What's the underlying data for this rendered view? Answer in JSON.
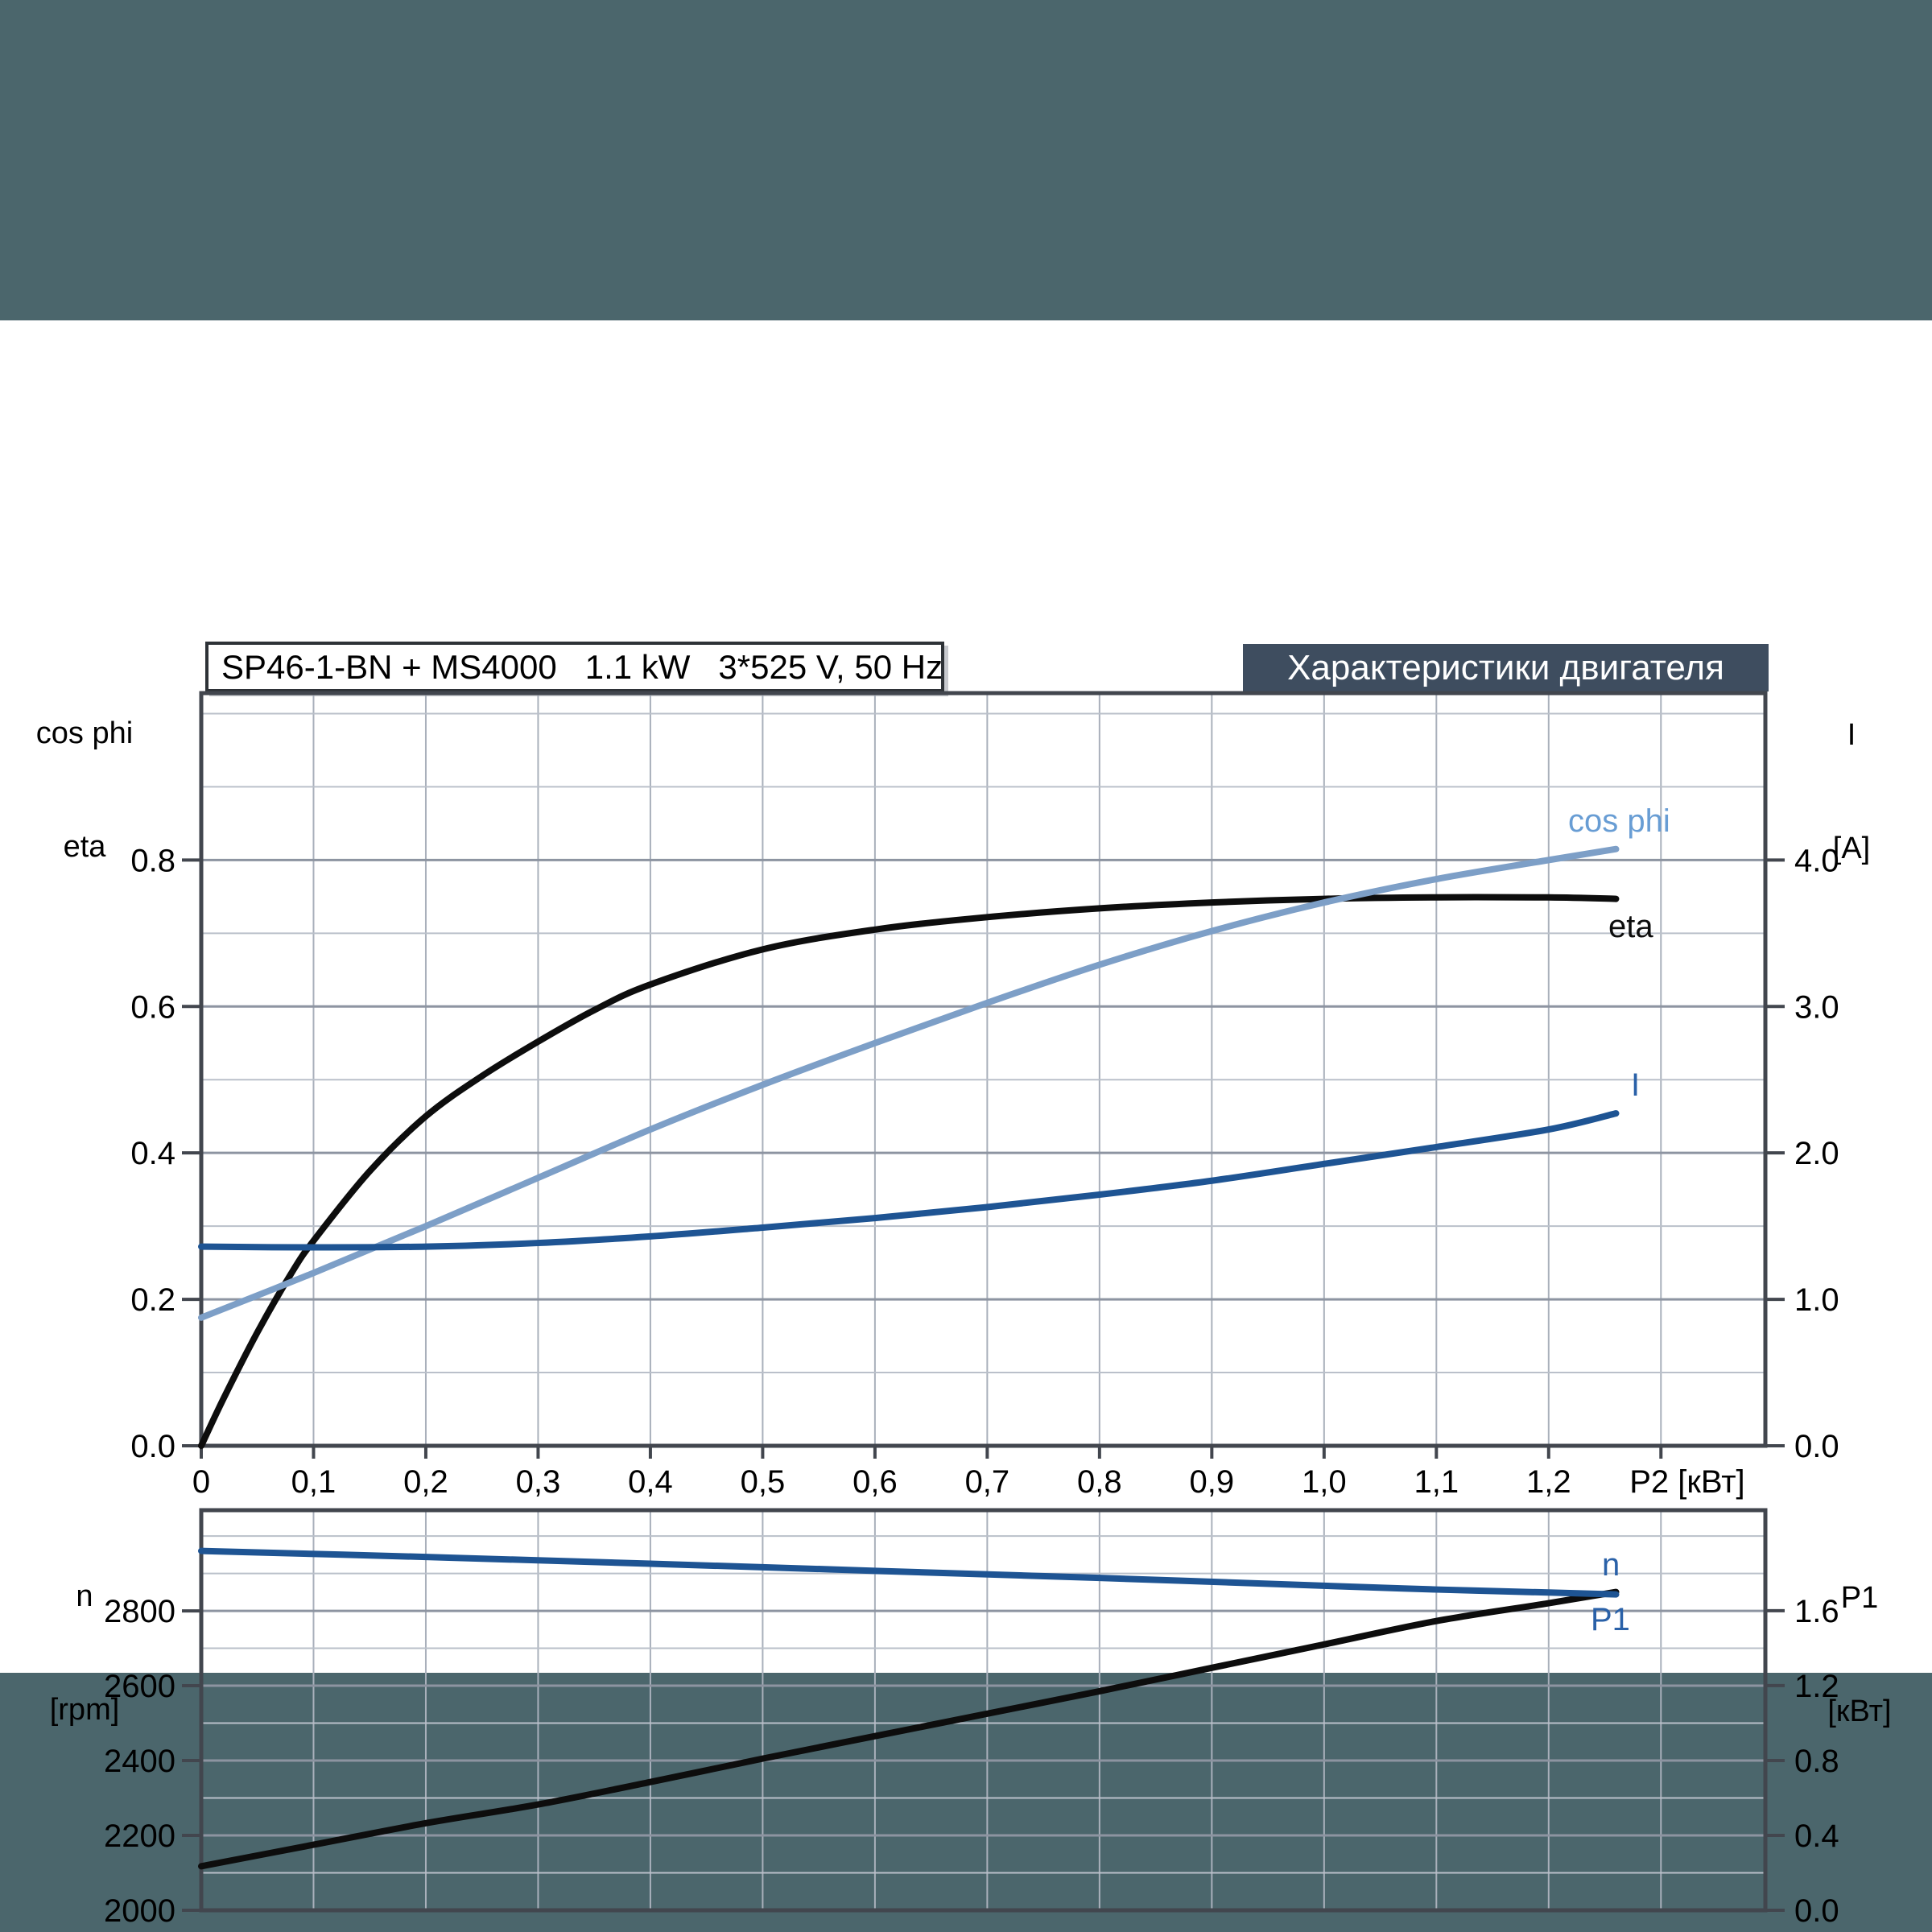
{
  "colors": {
    "background": "#4b666c",
    "panel": "#ffffff",
    "banner_bg": "#3e4d5f",
    "banner_text": "#ffffff",
    "chart_border": "#42464e",
    "grid_vertical": "#a9b0bb",
    "grid_minor": "#bac0ca",
    "grid_major": "#8d94a1",
    "eta_curve": "#0d0d0d",
    "cosphi_curve": "#7d9fc7",
    "cosphi_label": "#689dd4",
    "current_curve": "#1e5493",
    "blue_label": "#2a61a8",
    "tick_text": "#000000"
  },
  "header": {
    "title": "SP46-1-BN + MS4000   1.1 kW   3*525 V, 50 Hz",
    "banner": "Характеристики двигателя"
  },
  "chart_data": [
    {
      "id": "motor-electrical",
      "type": "line",
      "title": "SP46-1-BN + MS4000   1.1 kW   3*525 V, 50 Hz",
      "grid": true,
      "legend_position": "end-of-curve",
      "x": {
        "label": "P2 [кВт]",
        "label_x": 1.272,
        "min": 0,
        "max": 1.393,
        "grid_step": 0.1,
        "grid_max": 1.3,
        "show_tick_labels": true,
        "tick_labels": [
          "0",
          "0,1",
          "0,2",
          "0,3",
          "0,4",
          "0,5",
          "0,6",
          "0,7",
          "0,8",
          "0,9",
          "1,0",
          "1,1",
          "1,2"
        ],
        "tick_label_values": [
          0,
          0.1,
          0.2,
          0.3,
          0.4,
          0.5,
          0.6,
          0.7,
          0.8,
          0.9,
          1.0,
          1.1,
          1.2
        ]
      },
      "y_left": {
        "label_lines": [
          "cos phi",
          "eta"
        ],
        "min": 0,
        "max": 1.028,
        "grid_step": 0.1,
        "tick_labels": [
          "0.0",
          "0.2",
          "0.4",
          "0.6",
          "0.8"
        ],
        "tick_label_values": [
          0,
          0.2,
          0.4,
          0.6,
          0.8
        ]
      },
      "y_right": {
        "label_lines": [
          "I",
          "[A]"
        ],
        "min": 0,
        "max": 5.14,
        "tick_labels": [
          "0.0",
          "1.0",
          "2.0",
          "3.0",
          "4.0"
        ],
        "tick_label_values": [
          0,
          1,
          2,
          3,
          4
        ]
      },
      "series": [
        {
          "name": "eta",
          "label": "eta",
          "axis": "left",
          "color_key": "eta_curve",
          "label_color_key": "eta_curve",
          "points": [
            [
              0,
              0
            ],
            [
              0.02,
              0.065
            ],
            [
              0.05,
              0.155
            ],
            [
              0.08,
              0.235
            ],
            [
              0.1,
              0.28
            ],
            [
              0.15,
              0.375
            ],
            [
              0.2,
              0.45
            ],
            [
              0.25,
              0.505
            ],
            [
              0.3,
              0.552
            ],
            [
              0.35,
              0.595
            ],
            [
              0.4,
              0.63
            ],
            [
              0.5,
              0.678
            ],
            [
              0.6,
              0.705
            ],
            [
              0.7,
              0.722
            ],
            [
              0.8,
              0.734
            ],
            [
              0.9,
              0.742
            ],
            [
              1.0,
              0.747
            ],
            [
              1.1,
              0.749
            ],
            [
              1.2,
              0.749
            ],
            [
              1.26,
              0.747
            ]
          ]
        },
        {
          "name": "cos phi",
          "label": "cos phi",
          "axis": "left",
          "color_key": "cosphi_curve",
          "label_color_key": "cosphi_label",
          "points": [
            [
              0,
              0.175
            ],
            [
              0.1,
              0.236
            ],
            [
              0.2,
              0.3
            ],
            [
              0.3,
              0.366
            ],
            [
              0.4,
              0.432
            ],
            [
              0.5,
              0.493
            ],
            [
              0.6,
              0.55
            ],
            [
              0.7,
              0.605
            ],
            [
              0.8,
              0.657
            ],
            [
              0.9,
              0.703
            ],
            [
              1.0,
              0.742
            ],
            [
              1.1,
              0.774
            ],
            [
              1.2,
              0.8
            ],
            [
              1.26,
              0.815
            ]
          ]
        },
        {
          "name": "I",
          "label": "I",
          "axis": "right",
          "color_key": "current_curve",
          "label_color_key": "blue_label",
          "points": [
            [
              0,
              1.36
            ],
            [
              0.1,
              1.355
            ],
            [
              0.2,
              1.36
            ],
            [
              0.3,
              1.385
            ],
            [
              0.4,
              1.43
            ],
            [
              0.5,
              1.49
            ],
            [
              0.6,
              1.555
            ],
            [
              0.7,
              1.63
            ],
            [
              0.8,
              1.715
            ],
            [
              0.9,
              1.81
            ],
            [
              1.0,
              1.925
            ],
            [
              1.1,
              2.04
            ],
            [
              1.2,
              2.16
            ],
            [
              1.26,
              2.27
            ]
          ]
        }
      ]
    },
    {
      "id": "motor-speed-power",
      "type": "line",
      "grid": true,
      "legend_position": "end-of-curve",
      "x": {
        "label": "",
        "min": 0,
        "max": 1.393,
        "grid_step": 0.1,
        "grid_max": 1.3,
        "show_tick_labels": false,
        "tick_labels": [],
        "tick_label_values": []
      },
      "y_left": {
        "label_lines": [
          "n",
          "[rpm]"
        ],
        "min": 2000,
        "max": 3069,
        "grid_step": 100,
        "tick_labels": [
          "2000",
          "2200",
          "2400",
          "2600",
          "2800"
        ],
        "tick_label_values": [
          2000,
          2200,
          2400,
          2600,
          2800
        ]
      },
      "y_right": {
        "label_lines": [
          "P1",
          "[кВт]"
        ],
        "min": 0,
        "max": 2.137,
        "tick_labels": [
          "0.0",
          "0.4",
          "0.8",
          "1.2",
          "1.6"
        ],
        "tick_label_values": [
          0,
          0.4,
          0.8,
          1.2,
          1.6
        ]
      },
      "series": [
        {
          "name": "P1",
          "label": "P1",
          "axis": "right",
          "color_key": "eta_curve",
          "label_color_key": "blue_label",
          "points": [
            [
              0,
              0.235
            ],
            [
              0.1,
              0.35
            ],
            [
              0.2,
              0.465
            ],
            [
              0.3,
              0.565
            ],
            [
              0.4,
              0.685
            ],
            [
              0.5,
              0.81
            ],
            [
              0.6,
              0.93
            ],
            [
              0.7,
              1.05
            ],
            [
              0.8,
              1.17
            ],
            [
              0.9,
              1.295
            ],
            [
              1.0,
              1.42
            ],
            [
              1.1,
              1.545
            ],
            [
              1.2,
              1.64
            ],
            [
              1.26,
              1.7
            ]
          ]
        },
        {
          "name": "n",
          "label": "n",
          "axis": "left",
          "color_key": "current_curve",
          "label_color_key": "blue_label",
          "points": [
            [
              0,
              2960
            ],
            [
              0.2,
              2944
            ],
            [
              0.4,
              2926
            ],
            [
              0.6,
              2907
            ],
            [
              0.8,
              2888
            ],
            [
              1.0,
              2867
            ],
            [
              1.1,
              2857
            ],
            [
              1.2,
              2849
            ],
            [
              1.26,
              2844
            ]
          ]
        }
      ]
    }
  ]
}
